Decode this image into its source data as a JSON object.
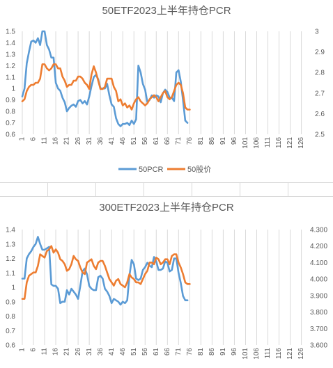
{
  "chart_data": [
    {
      "type": "line",
      "title": "50ETF2023上半年持仓PCR",
      "x_ticks": [
        "1",
        "6",
        "11",
        "16",
        "21",
        "26",
        "31",
        "36",
        "41",
        "46",
        "51",
        "56",
        "61",
        "66",
        "71",
        "76",
        "81",
        "86",
        "91",
        "96",
        "101",
        "106",
        "111",
        "116",
        "121",
        "126"
      ],
      "x_range": [
        1,
        128
      ],
      "y_left": {
        "ticks": [
          "0.6",
          "0.7",
          "0.8",
          "0.9",
          "1",
          "1.1",
          "1.2",
          "1.3",
          "1.4",
          "1.5"
        ],
        "range": [
          0.6,
          1.5
        ]
      },
      "y_right": {
        "ticks": [
          "2.5",
          "2.6",
          "2.7",
          "2.8",
          "2.9",
          "3"
        ],
        "range": [
          2.5,
          3.0
        ]
      },
      "grid": "vertical",
      "legend_position": "bottom",
      "series": [
        {
          "name": "50PCR",
          "axis": "left",
          "color": "#5B9BD5",
          "x": [
            1,
            2,
            3,
            4,
            5,
            6,
            7,
            8,
            9,
            10,
            11,
            12,
            13,
            14,
            15,
            16,
            17,
            18,
            19,
            20,
            21,
            22,
            23,
            24,
            25,
            26,
            27,
            28,
            29,
            30,
            31,
            32,
            33,
            34,
            35,
            36,
            37,
            38,
            39,
            40,
            41,
            42,
            43,
            44,
            45,
            46,
            47,
            48,
            49,
            50,
            51,
            52,
            53,
            54,
            55,
            56,
            57,
            58,
            59,
            60,
            61,
            62,
            63,
            64,
            65,
            66,
            67,
            68,
            69,
            70,
            71,
            72,
            73,
            74,
            75
          ],
          "values": [
            0.93,
            1.0,
            1.22,
            1.32,
            1.41,
            1.42,
            1.4,
            1.44,
            1.38,
            1.5,
            1.5,
            1.38,
            1.34,
            1.27,
            1.27,
            1.05,
            1.0,
            0.98,
            0.92,
            0.88,
            0.8,
            0.83,
            0.85,
            0.86,
            0.84,
            0.89,
            0.9,
            0.87,
            0.89,
            0.86,
            0.93,
            1.02,
            1.1,
            1.12,
            1.08,
            1.0,
            1.0,
            1.0,
            1.04,
            0.94,
            0.86,
            0.84,
            0.74,
            0.69,
            0.67,
            0.69,
            0.69,
            0.7,
            0.68,
            0.72,
            0.69,
            0.73,
            1.2,
            1.14,
            1.04,
            0.99,
            0.88,
            0.9,
            0.94,
            0.92,
            0.94,
            0.93,
            0.88,
            0.96,
            0.99,
            0.97,
            0.92,
            0.92,
            0.89,
            1.14,
            1.16,
            1.06,
            0.9,
            0.72,
            0.7
          ]
        },
        {
          "name": "50股价",
          "axis": "right",
          "color": "#ED7D31",
          "x": [
            1,
            2,
            3,
            4,
            5,
            6,
            7,
            8,
            9,
            10,
            11,
            12,
            13,
            14,
            15,
            16,
            17,
            18,
            19,
            20,
            21,
            22,
            23,
            24,
            25,
            26,
            27,
            28,
            29,
            30,
            31,
            32,
            33,
            34,
            35,
            36,
            37,
            38,
            39,
            40,
            41,
            42,
            43,
            44,
            45,
            46,
            47,
            48,
            49,
            50,
            51,
            52,
            53,
            54,
            55,
            56,
            57,
            58,
            59,
            60,
            61,
            62,
            63,
            64,
            65,
            66,
            67,
            68,
            69,
            70,
            71,
            72,
            73,
            74,
            75,
            76
          ],
          "values": [
            2.66,
            2.67,
            2.71,
            2.73,
            2.74,
            2.74,
            2.75,
            2.75,
            2.77,
            2.84,
            2.84,
            2.82,
            2.81,
            2.82,
            2.84,
            2.84,
            2.82,
            2.82,
            2.78,
            2.76,
            2.73,
            2.74,
            2.74,
            2.76,
            2.76,
            2.78,
            2.78,
            2.77,
            2.75,
            2.74,
            2.72,
            2.79,
            2.83,
            2.8,
            2.76,
            2.72,
            2.72,
            2.73,
            2.77,
            2.77,
            2.77,
            2.73,
            2.71,
            2.66,
            2.67,
            2.64,
            2.65,
            2.63,
            2.64,
            2.62,
            2.65,
            2.67,
            2.68,
            2.66,
            2.65,
            2.64,
            2.65,
            2.67,
            2.68,
            2.69,
            2.68,
            2.66,
            2.68,
            2.7,
            2.71,
            2.68,
            2.67,
            2.68,
            2.71,
            2.74,
            2.75,
            2.74,
            2.7,
            2.63,
            2.62,
            2.62
          ]
        }
      ]
    },
    {
      "type": "line",
      "title": "300ETF2023上半年持仓PCR",
      "x_ticks": [
        "1",
        "6",
        "11",
        "16",
        "21",
        "26",
        "31",
        "36",
        "41",
        "46",
        "51",
        "56",
        "61",
        "66",
        "71",
        "76",
        "81",
        "86",
        "91",
        "96",
        "101",
        "106",
        "111",
        "116",
        "121",
        "126"
      ],
      "x_range": [
        1,
        128
      ],
      "y_left": {
        "ticks": [
          "0.6",
          "0.7",
          "0.8",
          "0.9",
          "1",
          "1.1",
          "1.2",
          "1.3",
          "1.4"
        ],
        "range": [
          0.6,
          1.4
        ]
      },
      "y_right": {
        "ticks": [
          "3.600",
          "3.700",
          "3.800",
          "3.900",
          "4.000",
          "4.100",
          "4.200",
          "4.300"
        ],
        "range": [
          3.6,
          4.3
        ]
      },
      "grid": "vertical",
      "legend_position": "none",
      "series": [
        {
          "axis": "left",
          "color": "#5B9BD5",
          "x": [
            1,
            2,
            3,
            4,
            5,
            6,
            7,
            8,
            9,
            10,
            11,
            12,
            13,
            14,
            15,
            16,
            17,
            18,
            19,
            20,
            21,
            22,
            23,
            24,
            25,
            26,
            27,
            28,
            29,
            30,
            31,
            32,
            33,
            34,
            35,
            36,
            37,
            38,
            39,
            40,
            41,
            42,
            43,
            44,
            45,
            46,
            47,
            48,
            49,
            50,
            51,
            52,
            53,
            54,
            55,
            56,
            57,
            58,
            59,
            60,
            61,
            62,
            63,
            64,
            65,
            66,
            67,
            68,
            69,
            70,
            71,
            72,
            73,
            74,
            75
          ],
          "values": [
            1.06,
            1.06,
            1.2,
            1.23,
            1.25,
            1.28,
            1.3,
            1.35,
            1.3,
            1.26,
            1.26,
            1.27,
            1.28,
            1.02,
            1.01,
            1.01,
            0.99,
            0.89,
            0.9,
            0.9,
            0.98,
            0.95,
            0.99,
            0.97,
            0.95,
            0.92,
            1.01,
            1.11,
            1.13,
            1.09,
            1.01,
            0.99,
            0.98,
            0.98,
            1.07,
            1.08,
            1.06,
            0.99,
            0.97,
            0.94,
            0.89,
            0.92,
            0.91,
            0.9,
            0.88,
            0.9,
            0.89,
            0.91,
            1.08,
            1.19,
            1.16,
            1.06,
            1.05,
            1.06,
            1.12,
            1.14,
            1.17,
            1.15,
            1.14,
            1.21,
            1.18,
            1.12,
            1.12,
            1.13,
            1.18,
            1.17,
            1.11,
            1.12,
            1.2,
            1.2,
            1.1,
            1.03,
            0.94,
            0.91,
            0.91
          ]
        },
        {
          "axis": "right",
          "color": "#ED7D31",
          "x": [
            1,
            2,
            3,
            4,
            5,
            6,
            7,
            8,
            9,
            10,
            11,
            12,
            13,
            14,
            15,
            16,
            17,
            18,
            19,
            20,
            21,
            22,
            23,
            24,
            25,
            26,
            27,
            28,
            29,
            30,
            31,
            32,
            33,
            34,
            35,
            36,
            37,
            38,
            39,
            40,
            41,
            42,
            43,
            44,
            45,
            46,
            47,
            48,
            49,
            50,
            51,
            52,
            53,
            54,
            55,
            56,
            57,
            58,
            59,
            60,
            61,
            62,
            63,
            64,
            65,
            66,
            67,
            68,
            69,
            70,
            71,
            72,
            73,
            74,
            75,
            76
          ],
          "values": [
            3.88,
            3.88,
            3.98,
            4.02,
            4.03,
            4.04,
            4.04,
            4.08,
            4.15,
            4.14,
            4.13,
            4.17,
            4.18,
            4.2,
            4.16,
            4.18,
            4.16,
            4.12,
            4.11,
            4.09,
            4.05,
            4.06,
            4.09,
            4.14,
            4.12,
            4.11,
            4.07,
            4.04,
            4.03,
            4.1,
            4.11,
            4.12,
            4.08,
            4.06,
            4.1,
            4.11,
            4.11,
            4.08,
            4.04,
            4.0,
            3.98,
            3.96,
            3.99,
            4.0,
            3.97,
            3.96,
            3.95,
            3.98,
            4.03,
            4.01,
            4.0,
            3.98,
            3.98,
            3.97,
            4.0,
            4.03,
            4.05,
            4.1,
            4.1,
            4.09,
            4.13,
            4.12,
            4.09,
            4.1,
            4.12,
            4.12,
            4.09,
            4.14,
            4.15,
            4.15,
            4.1,
            4.07,
            4.03,
            3.98,
            3.97,
            3.97
          ]
        }
      ]
    }
  ]
}
